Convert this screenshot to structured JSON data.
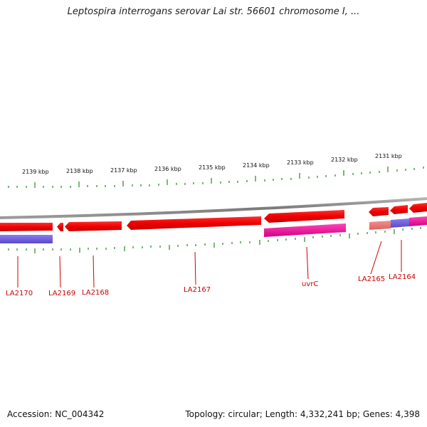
{
  "title": "Leptospira interrogans serovar Lai str. 56601 chromosome I, ...",
  "footer": {
    "accession": "Accession: NC_004342",
    "summary": "Topology: circular; Length: 4,332,241 bp; Genes: 4,398"
  },
  "colors": {
    "backbone": "#8a8a8a",
    "gene_red": "#ee0000",
    "gene_magenta": "#ee1199",
    "gene_blue": "#6a5acd",
    "gene_salmon": "#ee7777",
    "ticks": "#228822",
    "label": "#cc0000"
  },
  "scale_labels": [
    "2139 kbp",
    "2138 kbp",
    "2137 kbp",
    "2136 kbp",
    "2135 kbp",
    "2134 kbp",
    "2133 kbp",
    "2132 kbp",
    "2131 kbp"
  ],
  "gene_labels": [
    "LA2170",
    "LA2169",
    "LA2168",
    "LA2167",
    "uvrC",
    "LA2165",
    "LA2164"
  ]
}
